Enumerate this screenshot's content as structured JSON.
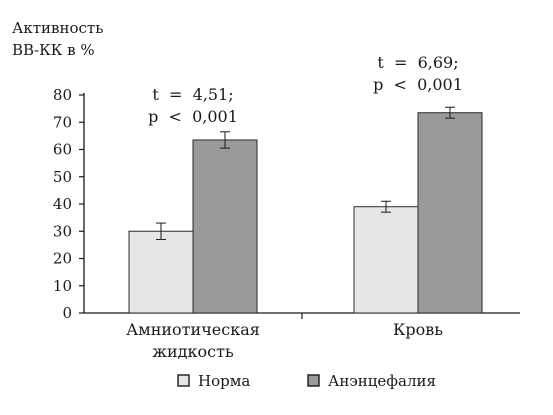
{
  "chart_data": {
    "type": "bar",
    "ylabel": [
      "Активность",
      "ВВ-КК в %"
    ],
    "ylim": [
      0,
      80
    ],
    "yticks": [
      0,
      10,
      20,
      30,
      40,
      50,
      60,
      70,
      80
    ],
    "categories": [
      [
        "Амниотическая",
        "жидкость"
      ],
      [
        "Кровь"
      ]
    ],
    "series": [
      {
        "name": "Норма",
        "values": [
          30,
          39
        ],
        "errors": [
          3,
          2
        ],
        "color": "#e6e6e6"
      },
      {
        "name": "Анэнцефалия",
        "values": [
          63.5,
          73.5
        ],
        "errors": [
          3,
          2
        ],
        "color": "#9a9a9a"
      }
    ],
    "annotations": [
      [
        "t  =  4,51;",
        "p  <  0,001"
      ],
      [
        "t  =  6,69;",
        "p  <  0,001"
      ]
    ],
    "legend_position": "bottom",
    "grid": false
  }
}
